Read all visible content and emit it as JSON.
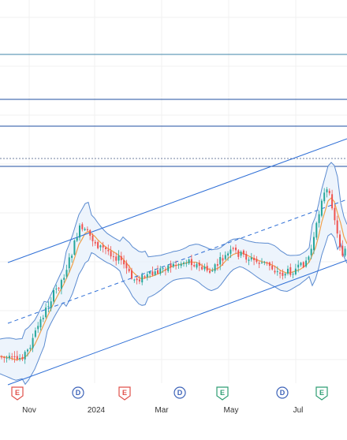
{
  "chart_data": {
    "type": "candlestick",
    "title": "",
    "xlabel": "",
    "ylabel": "",
    "x_tick_labels": [
      "Nov",
      "2024",
      "Mar",
      "May",
      "Jul"
    ],
    "ohlc": [],
    "indicators": [
      "Bollinger Bands",
      "moving average"
    ],
    "event_markers": [
      "E",
      "D",
      "E",
      "D",
      "E",
      "D",
      "E"
    ],
    "grid": true,
    "legend": "none"
  },
  "colors": {
    "up_candle": "#26a69a",
    "down_candle": "#ef5350",
    "band_line": "#5b8bd0",
    "band_fill": "#e8f1fb",
    "ma_line": "#f0a04b",
    "channel_line": "#2f6fd6",
    "support_resistance": "#1f4fa0",
    "earnings_marker": "#e0504a",
    "dividend_marker": "#3d63b8",
    "e_green_marker": "#2e9e73",
    "grid": "#f0f0f0",
    "axis_text": "#333333"
  }
}
